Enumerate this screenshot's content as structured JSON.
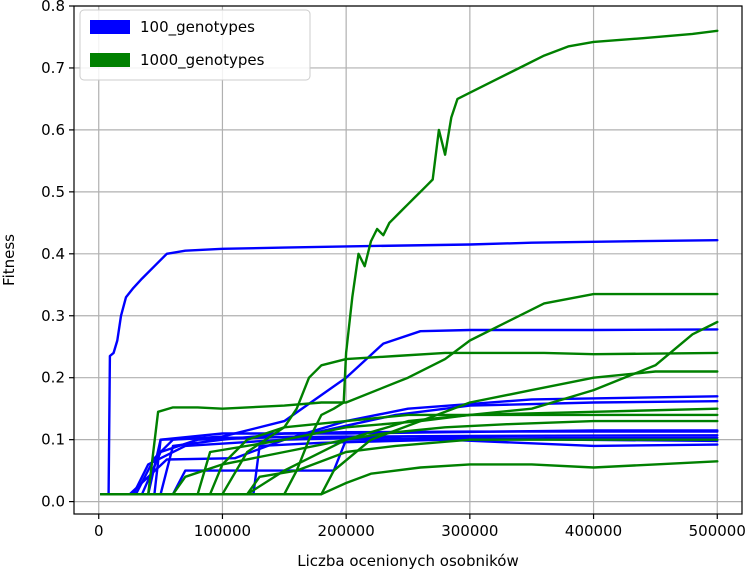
{
  "chart_data": {
    "type": "line",
    "title": "",
    "xlabel": "Liczba ocenionych osobników",
    "ylabel": "Fitness",
    "xlim": [
      -20000,
      520000
    ],
    "ylim": [
      -0.02,
      0.8
    ],
    "xticks": [
      0,
      100000,
      200000,
      300000,
      400000,
      500000
    ],
    "xtick_labels": [
      "0",
      "100000",
      "200000",
      "300000",
      "400000",
      "500000"
    ],
    "yticks": [
      0.0,
      0.1,
      0.2,
      0.3,
      0.4,
      0.5,
      0.6,
      0.7,
      0.8
    ],
    "ytick_labels": [
      "0.0",
      "0.1",
      "0.2",
      "0.3",
      "0.4",
      "0.5",
      "0.6",
      "0.7",
      "0.8"
    ],
    "grid": true,
    "legend_position": "top-left",
    "legend": [
      {
        "label": "100_genotypes",
        "color": "#0000ff"
      },
      {
        "label": "1000_genotypes",
        "color": "#008000"
      }
    ],
    "series": [
      {
        "group": "100_genotypes",
        "color": "#0000ff",
        "points": [
          [
            2000,
            0.012
          ],
          [
            8000,
            0.012
          ],
          [
            9000,
            0.235
          ],
          [
            12000,
            0.24
          ],
          [
            15000,
            0.26
          ],
          [
            18000,
            0.3
          ],
          [
            22000,
            0.33
          ],
          [
            28000,
            0.345
          ],
          [
            35000,
            0.36
          ],
          [
            45000,
            0.38
          ],
          [
            55000,
            0.4
          ],
          [
            70000,
            0.405
          ],
          [
            100000,
            0.408
          ],
          [
            150000,
            0.41
          ],
          [
            200000,
            0.412
          ],
          [
            300000,
            0.415
          ],
          [
            350000,
            0.418
          ],
          [
            420000,
            0.42
          ],
          [
            500000,
            0.422
          ]
        ]
      },
      {
        "group": "100_genotypes",
        "color": "#0000ff",
        "points": [
          [
            2000,
            0.012
          ],
          [
            30000,
            0.012
          ],
          [
            45000,
            0.07
          ],
          [
            60000,
            0.1
          ],
          [
            100000,
            0.105
          ],
          [
            150000,
            0.13
          ],
          [
            200000,
            0.2
          ],
          [
            230000,
            0.255
          ],
          [
            260000,
            0.275
          ],
          [
            300000,
            0.277
          ],
          [
            400000,
            0.277
          ],
          [
            500000,
            0.278
          ]
        ]
      },
      {
        "group": "100_genotypes",
        "color": "#0000ff",
        "points": [
          [
            2000,
            0.012
          ],
          [
            50000,
            0.012
          ],
          [
            60000,
            0.09
          ],
          [
            100000,
            0.1
          ],
          [
            150000,
            0.11
          ],
          [
            200000,
            0.112
          ],
          [
            300000,
            0.113
          ],
          [
            400000,
            0.113
          ],
          [
            500000,
            0.113
          ]
        ]
      },
      {
        "group": "100_genotypes",
        "color": "#0000ff",
        "points": [
          [
            2000,
            0.012
          ],
          [
            40000,
            0.012
          ],
          [
            50000,
            0.1
          ],
          [
            100000,
            0.103
          ],
          [
            200000,
            0.105
          ],
          [
            300000,
            0.106
          ],
          [
            500000,
            0.107
          ]
        ]
      },
      {
        "group": "100_genotypes",
        "color": "#0000ff",
        "points": [
          [
            2000,
            0.012
          ],
          [
            35000,
            0.012
          ],
          [
            50000,
            0.08
          ],
          [
            80000,
            0.1
          ],
          [
            160000,
            0.105
          ],
          [
            240000,
            0.14
          ],
          [
            300000,
            0.155
          ],
          [
            400000,
            0.16
          ],
          [
            500000,
            0.162
          ]
        ]
      },
      {
        "group": "100_genotypes",
        "color": "#0000ff",
        "points": [
          [
            2000,
            0.012
          ],
          [
            28000,
            0.012
          ],
          [
            40000,
            0.06
          ],
          [
            70000,
            0.09
          ],
          [
            150000,
            0.1
          ],
          [
            250000,
            0.105
          ],
          [
            380000,
            0.1
          ],
          [
            500000,
            0.098
          ]
        ]
      },
      {
        "group": "100_genotypes",
        "color": "#0000ff",
        "points": [
          [
            2000,
            0.012
          ],
          [
            25000,
            0.012
          ],
          [
            55000,
            0.068
          ],
          [
            110000,
            0.07
          ],
          [
            150000,
            0.1
          ],
          [
            200000,
            0.13
          ],
          [
            250000,
            0.15
          ],
          [
            350000,
            0.165
          ],
          [
            500000,
            0.17
          ]
        ]
      },
      {
        "group": "100_genotypes",
        "color": "#0000ff",
        "points": [
          [
            2000,
            0.012
          ],
          [
            60000,
            0.012
          ],
          [
            70000,
            0.05
          ],
          [
            160000,
            0.05
          ],
          [
            190000,
            0.05
          ],
          [
            200000,
            0.1
          ],
          [
            300000,
            0.102
          ],
          [
            500000,
            0.103
          ]
        ]
      },
      {
        "group": "100_genotypes",
        "color": "#0000ff",
        "points": [
          [
            2000,
            0.012
          ],
          [
            125000,
            0.012
          ],
          [
            130000,
            0.09
          ],
          [
            180000,
            0.095
          ],
          [
            280000,
            0.1
          ],
          [
            400000,
            0.09
          ],
          [
            500000,
            0.092
          ]
        ]
      },
      {
        "group": "100_genotypes",
        "color": "#0000ff",
        "points": [
          [
            2000,
            0.012
          ],
          [
            45000,
            0.012
          ],
          [
            50000,
            0.1
          ],
          [
            100000,
            0.11
          ],
          [
            200000,
            0.11
          ],
          [
            400000,
            0.115
          ],
          [
            500000,
            0.115
          ]
        ]
      },
      {
        "group": "1000_genotypes",
        "color": "#008000",
        "points": [
          [
            150000,
            0.012
          ],
          [
            160000,
            0.05
          ],
          [
            170000,
            0.1
          ],
          [
            180000,
            0.14
          ],
          [
            190000,
            0.15
          ],
          [
            198000,
            0.16
          ],
          [
            200000,
            0.24
          ],
          [
            205000,
            0.33
          ],
          [
            210000,
            0.4
          ],
          [
            215000,
            0.38
          ],
          [
            220000,
            0.42
          ],
          [
            225000,
            0.44
          ],
          [
            230000,
            0.43
          ],
          [
            235000,
            0.45
          ],
          [
            240000,
            0.46
          ],
          [
            245000,
            0.47
          ],
          [
            250000,
            0.48
          ],
          [
            255000,
            0.49
          ],
          [
            260000,
            0.5
          ],
          [
            265000,
            0.51
          ],
          [
            270000,
            0.52
          ],
          [
            275000,
            0.6
          ],
          [
            280000,
            0.56
          ],
          [
            285000,
            0.62
          ],
          [
            290000,
            0.65
          ],
          [
            300000,
            0.66
          ],
          [
            320000,
            0.68
          ],
          [
            340000,
            0.7
          ],
          [
            360000,
            0.72
          ],
          [
            380000,
            0.735
          ],
          [
            400000,
            0.742
          ],
          [
            440000,
            0.748
          ],
          [
            480000,
            0.755
          ],
          [
            500000,
            0.76
          ]
        ]
      },
      {
        "group": "1000_genotypes",
        "color": "#008000",
        "points": [
          [
            2000,
            0.012
          ],
          [
            40000,
            0.012
          ],
          [
            48000,
            0.145
          ],
          [
            60000,
            0.152
          ],
          [
            80000,
            0.152
          ],
          [
            100000,
            0.15
          ],
          [
            120000,
            0.152
          ],
          [
            150000,
            0.155
          ],
          [
            180000,
            0.16
          ],
          [
            200000,
            0.16
          ],
          [
            250000,
            0.2
          ],
          [
            280000,
            0.23
          ],
          [
            300000,
            0.26
          ],
          [
            340000,
            0.3
          ],
          [
            360000,
            0.32
          ],
          [
            400000,
            0.335
          ],
          [
            450000,
            0.335
          ],
          [
            500000,
            0.335
          ]
        ]
      },
      {
        "group": "1000_genotypes",
        "color": "#008000",
        "points": [
          [
            2000,
            0.012
          ],
          [
            100000,
            0.012
          ],
          [
            120000,
            0.08
          ],
          [
            150000,
            0.12
          ],
          [
            160000,
            0.15
          ],
          [
            170000,
            0.2
          ],
          [
            180000,
            0.22
          ],
          [
            200000,
            0.23
          ],
          [
            240000,
            0.235
          ],
          [
            280000,
            0.24
          ],
          [
            320000,
            0.24
          ],
          [
            360000,
            0.24
          ],
          [
            400000,
            0.238
          ],
          [
            500000,
            0.24
          ]
        ]
      },
      {
        "group": "1000_genotypes",
        "color": "#008000",
        "points": [
          [
            2000,
            0.012
          ],
          [
            180000,
            0.012
          ],
          [
            190000,
            0.05
          ],
          [
            220000,
            0.1
          ],
          [
            260000,
            0.13
          ],
          [
            300000,
            0.16
          ],
          [
            350000,
            0.18
          ],
          [
            400000,
            0.2
          ],
          [
            450000,
            0.21
          ],
          [
            500000,
            0.21
          ]
        ]
      },
      {
        "group": "1000_genotypes",
        "color": "#008000",
        "points": [
          [
            2000,
            0.012
          ],
          [
            120000,
            0.012
          ],
          [
            150000,
            0.05
          ],
          [
            200000,
            0.1
          ],
          [
            250000,
            0.13
          ],
          [
            300000,
            0.14
          ],
          [
            350000,
            0.15
          ],
          [
            400000,
            0.18
          ],
          [
            450000,
            0.22
          ],
          [
            480000,
            0.27
          ],
          [
            500000,
            0.29
          ]
        ]
      },
      {
        "group": "1000_genotypes",
        "color": "#008000",
        "points": [
          [
            2000,
            0.012
          ],
          [
            90000,
            0.012
          ],
          [
            100000,
            0.06
          ],
          [
            120000,
            0.1
          ],
          [
            150000,
            0.12
          ],
          [
            200000,
            0.13
          ],
          [
            250000,
            0.14
          ],
          [
            300000,
            0.14
          ],
          [
            400000,
            0.14
          ],
          [
            500000,
            0.14
          ]
        ]
      },
      {
        "group": "1000_genotypes",
        "color": "#008000",
        "points": [
          [
            2000,
            0.012
          ],
          [
            60000,
            0.012
          ],
          [
            70000,
            0.04
          ],
          [
            100000,
            0.06
          ],
          [
            150000,
            0.08
          ],
          [
            200000,
            0.1
          ],
          [
            230000,
            0.11
          ],
          [
            280000,
            0.12
          ],
          [
            330000,
            0.125
          ],
          [
            400000,
            0.13
          ],
          [
            500000,
            0.13
          ]
        ]
      },
      {
        "group": "1000_genotypes",
        "color": "#008000",
        "points": [
          [
            2000,
            0.012
          ],
          [
            180000,
            0.012
          ],
          [
            200000,
            0.03
          ],
          [
            220000,
            0.045
          ],
          [
            260000,
            0.055
          ],
          [
            300000,
            0.06
          ],
          [
            350000,
            0.06
          ],
          [
            400000,
            0.055
          ],
          [
            450000,
            0.06
          ],
          [
            500000,
            0.065
          ]
        ]
      },
      {
        "group": "1000_genotypes",
        "color": "#008000",
        "points": [
          [
            2000,
            0.012
          ],
          [
            120000,
            0.012
          ],
          [
            130000,
            0.04
          ],
          [
            160000,
            0.05
          ],
          [
            200000,
            0.08
          ],
          [
            240000,
            0.09
          ],
          [
            300000,
            0.1
          ],
          [
            400000,
            0.1
          ],
          [
            500000,
            0.1
          ]
        ]
      },
      {
        "group": "1000_genotypes",
        "color": "#008000",
        "points": [
          [
            2000,
            0.012
          ],
          [
            80000,
            0.012
          ],
          [
            90000,
            0.08
          ],
          [
            150000,
            0.1
          ],
          [
            200000,
            0.12
          ],
          [
            260000,
            0.13
          ],
          [
            300000,
            0.14
          ],
          [
            400000,
            0.145
          ],
          [
            500000,
            0.15
          ]
        ]
      }
    ]
  }
}
